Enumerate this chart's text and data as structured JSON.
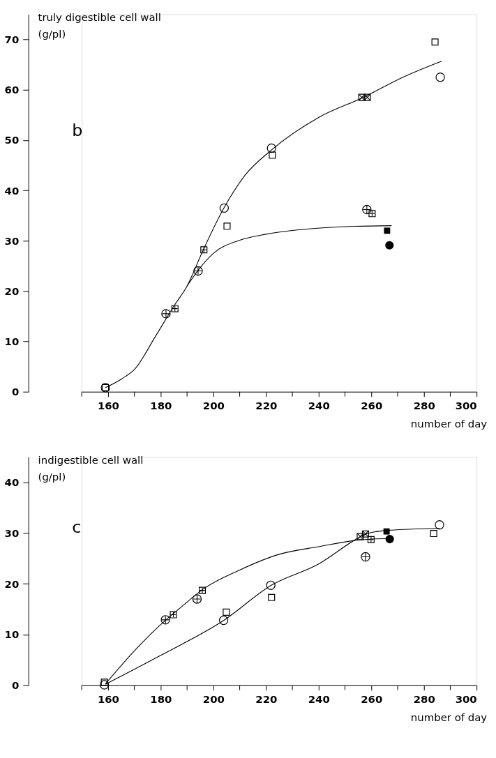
{
  "chart_data": [
    {
      "type": "scatter",
      "ylabel": "truly digestible cell wall\n(g/pl)",
      "xlabel": "number of day",
      "annotations": [
        "b"
      ],
      "xlim": [
        150,
        300
      ],
      "xticks": [
        {
          "value": 150,
          "label": null
        },
        160,
        {
          "value": 170,
          "label": null
        },
        180,
        {
          "value": 190,
          "label": null
        },
        200,
        {
          "value": 210,
          "label": null
        },
        220,
        {
          "value": 230,
          "label": null
        },
        240,
        {
          "value": 250,
          "label": null
        },
        260,
        {
          "value": 270,
          "label": null
        },
        280,
        {
          "value": 290,
          "label": null
        },
        300
      ],
      "ylim": [
        0,
        75
      ],
      "yticks": [
        0,
        10,
        20,
        30,
        40,
        50,
        60,
        70
      ],
      "grid": false,
      "series": [
        {
          "type": "line",
          "color": "#000000",
          "x": [
            159,
            165,
            170,
            178,
            185,
            190,
            196,
            204,
            212,
            222,
            240,
            257,
            272,
            286.7
          ],
          "values": [
            0.8,
            2.5,
            4.4,
            11,
            17,
            21,
            28,
            36.5,
            43,
            48,
            54.5,
            58.5,
            62.5,
            65.7
          ]
        },
        {
          "type": "line",
          "color": "#000000",
          "x": [
            190,
            194,
            200,
            210,
            220,
            237,
            250,
            267.7
          ],
          "values": [
            21,
            24,
            27.5,
            30.1,
            31.3,
            32.4,
            32.8,
            33.0
          ]
        },
        {
          "marker": "circle",
          "color": "#000000",
          "x": [
            159,
            204.1,
            222.1,
            286.2
          ],
          "values": [
            0.8,
            36.5,
            48.4,
            62.5
          ]
        },
        {
          "marker": "square",
          "color": "#000000",
          "x": [
            159,
            205.2,
            222.4,
            284.2
          ],
          "values": [
            0.8,
            32.9,
            47,
            69.5
          ]
        },
        {
          "marker": "circle-plus",
          "color": "#000000",
          "x": [
            182,
            194.2,
            258.3
          ],
          "values": [
            15.5,
            24,
            36.2
          ]
        },
        {
          "marker": "square-plus",
          "color": "#000000",
          "x": [
            185.4,
            196.4,
            260.3
          ],
          "values": [
            16.5,
            28.2,
            35.4
          ]
        },
        {
          "marker": "cross",
          "color": "#000000",
          "x": [
            256.4,
            258.5
          ],
          "values": [
            58.5,
            58.5
          ]
        },
        {
          "marker": "square-filled",
          "color": "#000000",
          "x": [
            266
          ],
          "values": [
            32
          ]
        },
        {
          "marker": "circle-filled",
          "color": "#000000",
          "x": [
            266.9
          ],
          "values": [
            29.1
          ]
        }
      ]
    },
    {
      "type": "scatter",
      "ylabel": "indigestible cell wall\n(g/pl)",
      "xlabel": "number of day",
      "annotations": [
        "c"
      ],
      "xlim": [
        150,
        300
      ],
      "xticks": [
        {
          "value": 150,
          "label": null
        },
        160,
        {
          "value": 170,
          "label": null
        },
        180,
        {
          "value": 190,
          "label": null
        },
        200,
        {
          "value": 210,
          "label": null
        },
        220,
        {
          "value": 230,
          "label": null
        },
        240,
        {
          "value": 250,
          "label": null
        },
        260,
        {
          "value": 270,
          "label": null
        },
        280,
        {
          "value": 290,
          "label": null
        },
        300
      ],
      "ylim": [
        0,
        45
      ],
      "yticks": [
        0,
        10,
        20,
        30,
        40
      ],
      "grid": false,
      "series": [
        {
          "type": "line",
          "color": "#000000",
          "x": [
            159,
            170,
            182,
            188,
            196,
            210,
            225,
            240,
            255,
            260,
            267
          ],
          "values": [
            0.3,
            6.8,
            12.9,
            15.5,
            18.9,
            22.7,
            25.8,
            27.3,
            28.6,
            28.8,
            28.9
          ]
        },
        {
          "type": "line",
          "color": "#000000",
          "x": [
            159,
            180,
            204,
            222,
            240,
            255,
            258,
            266,
            286
          ],
          "values": [
            0.2,
            5.9,
            12.8,
            19.7,
            23.9,
            29,
            29.8,
            30.5,
            30.9
          ]
        },
        {
          "marker": "circle",
          "color": "#000000",
          "x": [
            158.6,
            203.9,
            221.8,
            285.9
          ],
          "values": [
            0.1,
            12.8,
            19.7,
            31.6
          ]
        },
        {
          "marker": "square",
          "color": "#000000",
          "x": [
            158.6,
            204.9,
            222.1,
            283.7
          ],
          "values": [
            0.6,
            14.4,
            17.3,
            29.9
          ]
        },
        {
          "marker": "circle-plus",
          "color": "#000000",
          "x": [
            181.8,
            193.8,
            257.8
          ],
          "values": [
            12.9,
            17,
            25.3
          ]
        },
        {
          "marker": "square-plus",
          "color": "#000000",
          "x": [
            184.8,
            195.8,
            259.9
          ],
          "values": [
            13.9,
            18.7,
            28.7
          ]
        },
        {
          "marker": "cross",
          "color": "#000000",
          "x": [
            255.8,
            257.8
          ],
          "values": [
            29.3,
            29.8
          ]
        },
        {
          "marker": "square-filled",
          "color": "#000000",
          "x": [
            265.8
          ],
          "values": [
            30.3
          ]
        },
        {
          "marker": "circle-filled",
          "color": "#000000",
          "x": [
            267
          ],
          "values": [
            28.8
          ]
        }
      ]
    }
  ]
}
